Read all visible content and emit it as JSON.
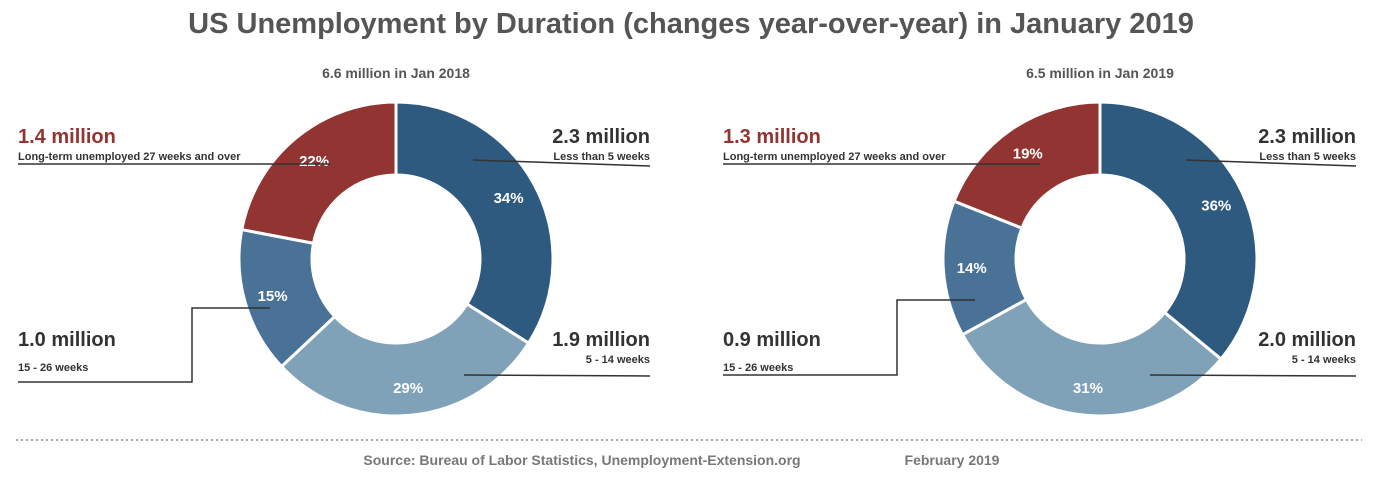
{
  "title": "US Unemployment by Duration (changes year-over-year) in January 2019",
  "chart_data": [
    {
      "type": "pie",
      "variant": "donut",
      "title": "6.6 million in Jan 2018",
      "slices": [
        {
          "label": "Less than 5 weeks",
          "amount": "2.3 million",
          "percent": 34,
          "pct_label": "34%",
          "color": "#2f5a80",
          "label_color": "#333333"
        },
        {
          "label": "5 - 14 weeks",
          "amount": "1.9 million",
          "percent": 29,
          "pct_label": "29%",
          "color": "#80a2b8",
          "label_color": "#333333"
        },
        {
          "label": "15 - 26 weeks",
          "amount": "1.0 million",
          "percent": 15,
          "pct_label": "15%",
          "color": "#4a7296",
          "label_color": "#333333"
        },
        {
          "label": "Long-term unemployed 27 weeks and over",
          "amount": "1.4 million",
          "percent": 22,
          "pct_label": "22%",
          "color": "#923432",
          "label_color": "#923432"
        }
      ]
    },
    {
      "type": "pie",
      "variant": "donut",
      "title": "6.5 million in Jan 2019",
      "slices": [
        {
          "label": "Less than 5 weeks",
          "amount": "2.3 million",
          "percent": 36,
          "pct_label": "36%",
          "color": "#2f5a80",
          "label_color": "#333333"
        },
        {
          "label": "5 - 14 weeks",
          "amount": "2.0 million",
          "percent": 31,
          "pct_label": "31%",
          "color": "#80a2b8",
          "label_color": "#333333"
        },
        {
          "label": "15 - 26 weeks",
          "amount": "0.9 million",
          "percent": 14,
          "pct_label": "14%",
          "color": "#4a7296",
          "label_color": "#333333"
        },
        {
          "label": "Long-term unemployed 27 weeks and over",
          "amount": "1.3 million",
          "percent": 19,
          "pct_label": "19%",
          "color": "#923432",
          "label_color": "#923432"
        }
      ]
    }
  ],
  "footer": {
    "source": "Source: Bureau of Labor Statistics, Unemployment-Extension.org",
    "date": "February 2019"
  }
}
